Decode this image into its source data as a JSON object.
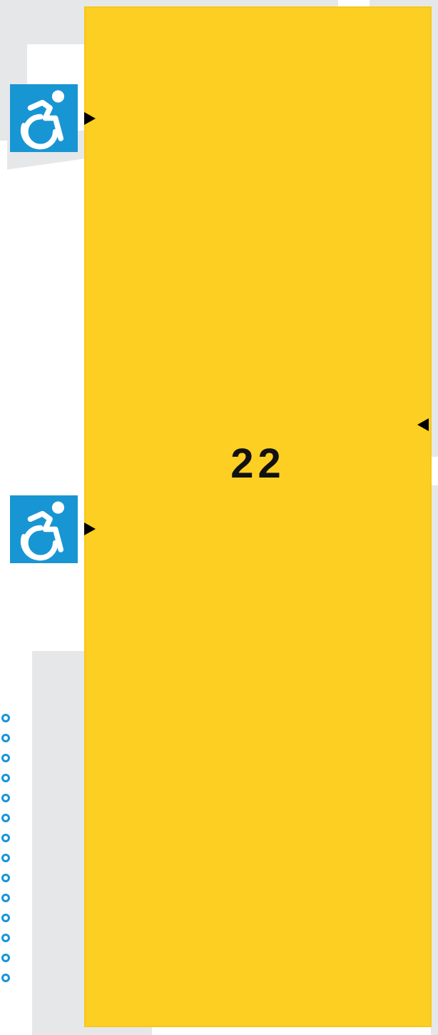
{
  "map": {
    "room_number": "22",
    "room_fill": "#fdcf22",
    "background_gray": "#e6e7e9",
    "accessibility_color": "#1896d4"
  },
  "accessible_entrances": [
    {
      "icon": "wheelchair-accessibility-icon"
    },
    {
      "icon": "wheelchair-accessibility-icon"
    }
  ],
  "entrance_markers": [
    {
      "direction": "right"
    },
    {
      "direction": "right"
    },
    {
      "direction": "left"
    }
  ]
}
